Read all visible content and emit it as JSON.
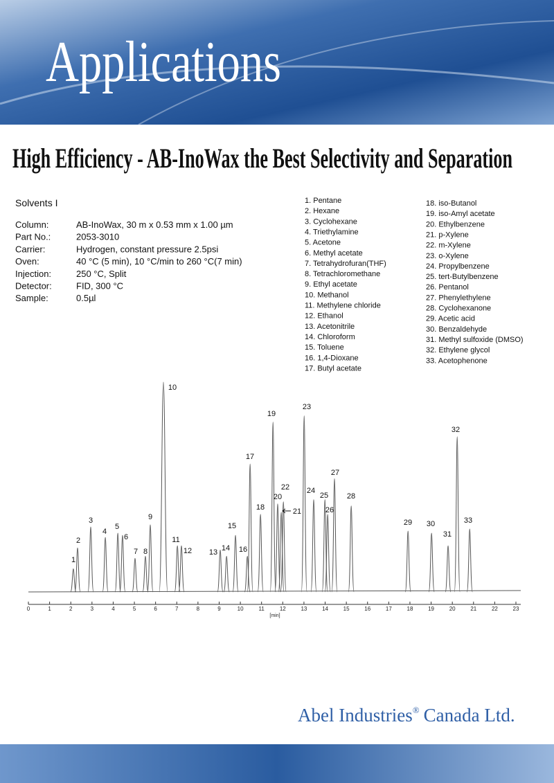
{
  "header": {
    "title": "Applications"
  },
  "title": "High Efficiency - AB-InoWax the Best Selectivity and Separation",
  "sample": {
    "name": "Solvents I",
    "conditions": [
      {
        "label": "Column:",
        "value": "AB-InoWax, 30 m x 0.53 mm x 1.00 µm"
      },
      {
        "label": "Part No.:",
        "value": "2053-3010"
      },
      {
        "label": "Carrier:",
        "value": "Hydrogen, constant pressure 2.5psi"
      },
      {
        "label": "Oven:",
        "value": "40 °C (5 min), 10 °C/min to 260 °C(7 min)"
      },
      {
        "label": "Injection:",
        "value": "250 °C, Split"
      },
      {
        "label": "Detector:",
        "value": "FID, 300 °C"
      },
      {
        "label": "Sample:",
        "value": "0.5µl"
      }
    ]
  },
  "compounds": [
    [
      "1. Pentane",
      "2. Hexane",
      "3. Cyclohexane",
      "4. Triethylamine",
      "5. Acetone",
      "6. Methyl acetate",
      "7. Tetrahydrofuran(THF)",
      "8. Tetrachloromethane",
      "9. Ethyl acetate",
      "10. Methanol",
      "11. Methylene chloride",
      "12. Ethanol",
      "13. Acetonitrile",
      "14. Chloroform",
      "15. Toluene",
      "16. 1,4-Dioxane",
      "17. Butyl acetate"
    ],
    [
      "18. iso-Butanol",
      "19. iso-Amyl acetate",
      "20. Ethylbenzene",
      "21. p-Xylene",
      "22. m-Xylene",
      "23. o-Xylene",
      "24. Propylbenzene",
      "25. tert-Butylbenzene",
      "26. Pentanol",
      "27. Phenylethylene",
      "28. Cyclohexanone",
      "29. Acetic acid",
      "30. Benzaldehyde",
      "31. Methyl sulfoxide (DMSO)",
      "32. Ethylene glycol",
      "33. Acetophenone"
    ]
  ],
  "chart_data": {
    "type": "chromatogram",
    "x_label": "[min]",
    "labels": [
      "1",
      "2",
      "3",
      "4",
      "5",
      "6",
      "7",
      "8",
      "9",
      "10",
      "11",
      "12",
      "13",
      "14",
      "15",
      "16",
      "17",
      "18",
      "19",
      "20",
      "21",
      "22",
      "23",
      "24",
      "25",
      "26",
      "27",
      "28",
      "29",
      "30",
      "31",
      "32",
      "33"
    ],
    "x": [
      2.12,
      2.32,
      2.94,
      3.63,
      4.22,
      4.44,
      5.03,
      5.52,
      5.75,
      6.37,
      7.03,
      7.22,
      9.05,
      9.35,
      9.77,
      10.33,
      10.46,
      10.95,
      11.54,
      11.76,
      11.93,
      12.03,
      13.01,
      13.46,
      13.99,
      14.12,
      14.44,
      15.23,
      17.91,
      19.02,
      19.8,
      20.23,
      20.82
    ],
    "values": [
      11,
      21,
      31,
      26,
      28,
      27,
      16,
      17,
      32,
      100,
      22,
      22,
      20,
      17,
      27,
      17,
      61,
      37,
      81,
      42,
      38,
      43,
      84,
      44,
      44,
      37,
      54,
      41,
      29,
      28,
      22,
      74,
      30
    ],
    "color": "#555555",
    "xlim": [
      0,
      23
    ],
    "xticks": [
      0,
      1,
      2,
      3,
      4,
      5,
      6,
      7,
      8,
      9,
      10,
      11,
      12,
      13,
      14,
      15,
      16,
      17,
      18,
      19,
      20,
      21,
      22,
      23
    ],
    "ylim": [
      0,
      100
    ]
  },
  "footer": {
    "company": "Abel Industries",
    "mark": "®",
    "suffix": "Canada Ltd."
  }
}
